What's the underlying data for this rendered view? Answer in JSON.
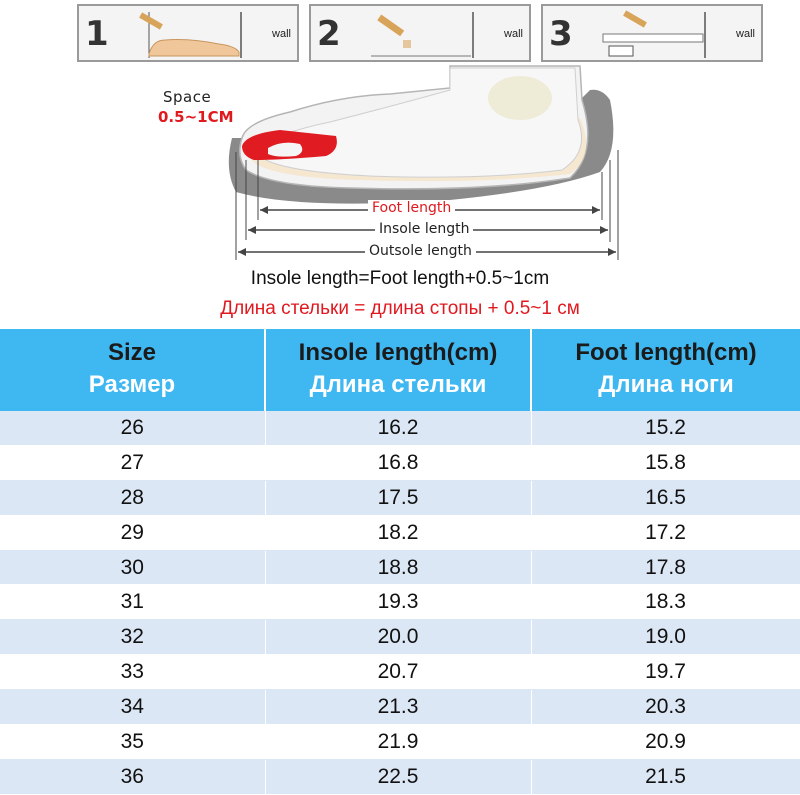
{
  "steps": [
    {
      "number": "1",
      "wall": "wall"
    },
    {
      "number": "2",
      "wall": "wall"
    },
    {
      "number": "3",
      "wall": "wall"
    }
  ],
  "diagram": {
    "space_label": "Space",
    "space_value": "0.5~1CM",
    "foot_length": "Foot length",
    "insole_length": "Insole length",
    "outsole_length": "Outsole length"
  },
  "formula_en": "Insole length=Foot length+0.5~1cm",
  "formula_ru": "Длина стельки = длина стопы + 0.5~1 см",
  "table": {
    "headers": [
      {
        "en": "Size",
        "ru": "Размер"
      },
      {
        "en": "Insole length(cm)",
        "ru": "Длина стельки"
      },
      {
        "en": "Foot length(cm)",
        "ru": "Длина ноги"
      }
    ],
    "rows": [
      [
        "26",
        "16.2",
        "15.2"
      ],
      [
        "27",
        "16.8",
        "15.8"
      ],
      [
        "28",
        "17.5",
        "16.5"
      ],
      [
        "29",
        "18.2",
        "17.2"
      ],
      [
        "30",
        "18.8",
        "17.8"
      ],
      [
        "31",
        "19.3",
        "18.3"
      ],
      [
        "32",
        "20.0",
        "19.0"
      ],
      [
        "33",
        "20.7",
        "19.7"
      ],
      [
        "34",
        "21.3",
        "20.3"
      ],
      [
        "35",
        "21.9",
        "20.9"
      ],
      [
        "36",
        "22.5",
        "21.5"
      ]
    ]
  }
}
